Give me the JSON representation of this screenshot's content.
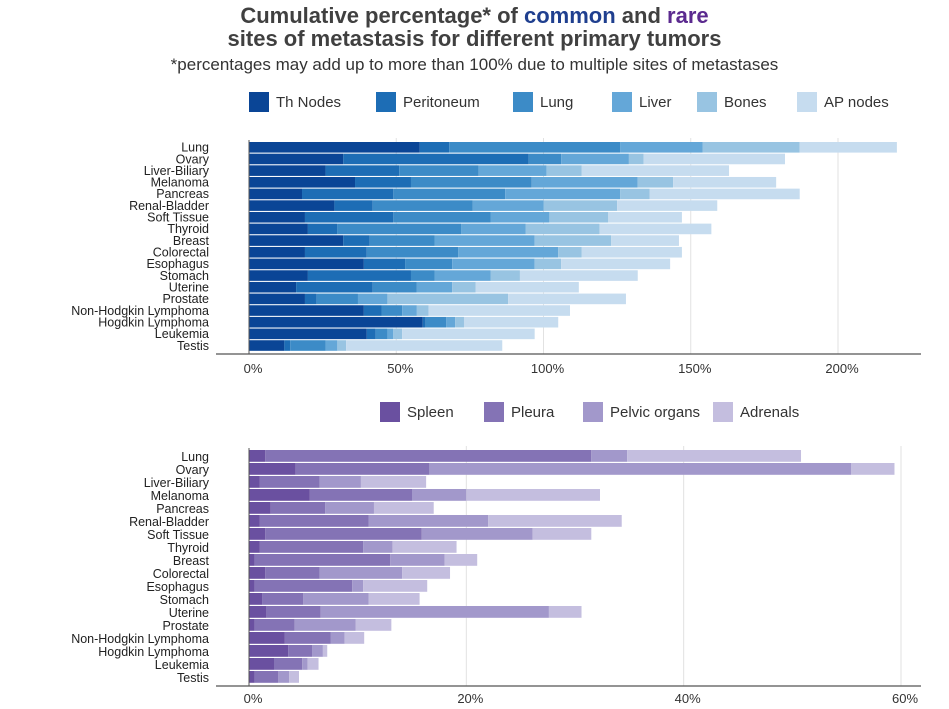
{
  "title": {
    "part1": "Cumulative percentage* of ",
    "common": "common",
    "and": " and ",
    "rare": "rare",
    "line2": "sites of metastasis for different primary tumors",
    "common_color": "#1f3f8f",
    "rare_color": "#5b2a8f"
  },
  "subtitle": "*percentages may add up to more than 100% due to multiple sites of metastases",
  "chart_data": [
    {
      "type": "bar",
      "orientation": "horizontal",
      "stacked": true,
      "title": "",
      "xlabel": "",
      "ylabel": "",
      "xlim": [
        0,
        225
      ],
      "xticks": [
        0,
        50,
        100,
        150,
        200
      ],
      "tick_suffix": "%",
      "legend_position": "top",
      "grid": true,
      "categories": [
        "Lung",
        "Ovary",
        "Liver-Biliary",
        "Melanoma",
        "Pancreas",
        "Renal-Bladder",
        "Soft Tissue",
        "Thyroid",
        "Breast",
        "Colorectal",
        "Esophagus",
        "Stomach",
        "Uterine",
        "Prostate",
        "Non-Hodgkin Lymphoma",
        "Hogdkin Lymphoma",
        "Leukemia",
        "Testis"
      ],
      "series": [
        {
          "name": "Th Nodes",
          "color": "#0a4596",
          "values": [
            58,
            32,
            26,
            36,
            18,
            29,
            19,
            20,
            32,
            19,
            39,
            20,
            16,
            19,
            39,
            59,
            40,
            12
          ]
        },
        {
          "name": "Peritoneum",
          "color": "#1d6db5",
          "values": [
            10,
            63,
            25,
            19,
            31,
            13,
            30,
            10,
            9,
            21,
            14,
            35,
            26,
            4,
            6,
            1,
            3,
            2
          ]
        },
        {
          "name": "Lung",
          "color": "#3c8bc7",
          "values": [
            58,
            11,
            27,
            41,
            38,
            34,
            33,
            42,
            22,
            31,
            16,
            8,
            15,
            14,
            7,
            7,
            4,
            12
          ]
        },
        {
          "name": "Liver",
          "color": "#64a7d8",
          "values": [
            28,
            23,
            23,
            36,
            39,
            24,
            20,
            22,
            34,
            34,
            28,
            19,
            12,
            10,
            5,
            3,
            2,
            4
          ]
        },
        {
          "name": "Bones",
          "color": "#98c4e2",
          "values": [
            33,
            5,
            12,
            12,
            10,
            25,
            20,
            25,
            26,
            8,
            9,
            10,
            8,
            41,
            4,
            3,
            3,
            3
          ]
        },
        {
          "name": "AP nodes",
          "color": "#c6dcef",
          "values": [
            33,
            48,
            50,
            35,
            51,
            34,
            25,
            38,
            23,
            34,
            37,
            40,
            35,
            40,
            48,
            32,
            45,
            53
          ]
        }
      ]
    },
    {
      "type": "bar",
      "orientation": "horizontal",
      "stacked": true,
      "title": "",
      "xlabel": "",
      "ylabel": "",
      "xlim": [
        0,
        62
      ],
      "xticks": [
        0,
        20,
        40,
        60
      ],
      "tick_suffix": "%",
      "legend_position": "top",
      "grid": true,
      "categories": [
        "Lung",
        "Ovary",
        "Liver-Biliary",
        "Melanoma",
        "Pancreas",
        "Renal-Bladder",
        "Soft Tissue",
        "Thyroid",
        "Breast",
        "Colorectal",
        "Esophagus",
        "Stomach",
        "Uterine",
        "Prostate",
        "Non-Hodgkin Lymphoma",
        "Hogdkin Lymphoma",
        "Leukemia",
        "Testis"
      ],
      "series": [
        {
          "name": "Spleen",
          "color": "#6a50a0",
          "values": [
            1.5,
            4.3,
            1,
            5.6,
            2,
            1,
            1.5,
            1,
            0.5,
            1.5,
            0.5,
            1.2,
            1.6,
            0.5,
            3.3,
            3.6,
            2.3,
            0.5
          ]
        },
        {
          "name": "Pleura",
          "color": "#8473b5",
          "values": [
            30,
            12.3,
            5.5,
            9.4,
            5,
            10,
            14.4,
            9.5,
            12.5,
            5,
            9,
            3.8,
            5,
            3.7,
            4.2,
            2.2,
            2.6,
            2.2
          ]
        },
        {
          "name": "Pelvic organs",
          "color": "#a298cb",
          "values": [
            3.3,
            38.8,
            3.8,
            5,
            4.5,
            11,
            10.2,
            2.7,
            5,
            7.6,
            1,
            6,
            21,
            5.6,
            1.3,
            1,
            0.5,
            1
          ]
        },
        {
          "name": "Adrenals",
          "color": "#c4bedf",
          "values": [
            16,
            4,
            6,
            12.3,
            5.5,
            12.3,
            5.4,
            5.9,
            3,
            4.4,
            5.9,
            4.7,
            3,
            3.3,
            1.8,
            0.4,
            1,
            0.9
          ]
        }
      ]
    }
  ]
}
